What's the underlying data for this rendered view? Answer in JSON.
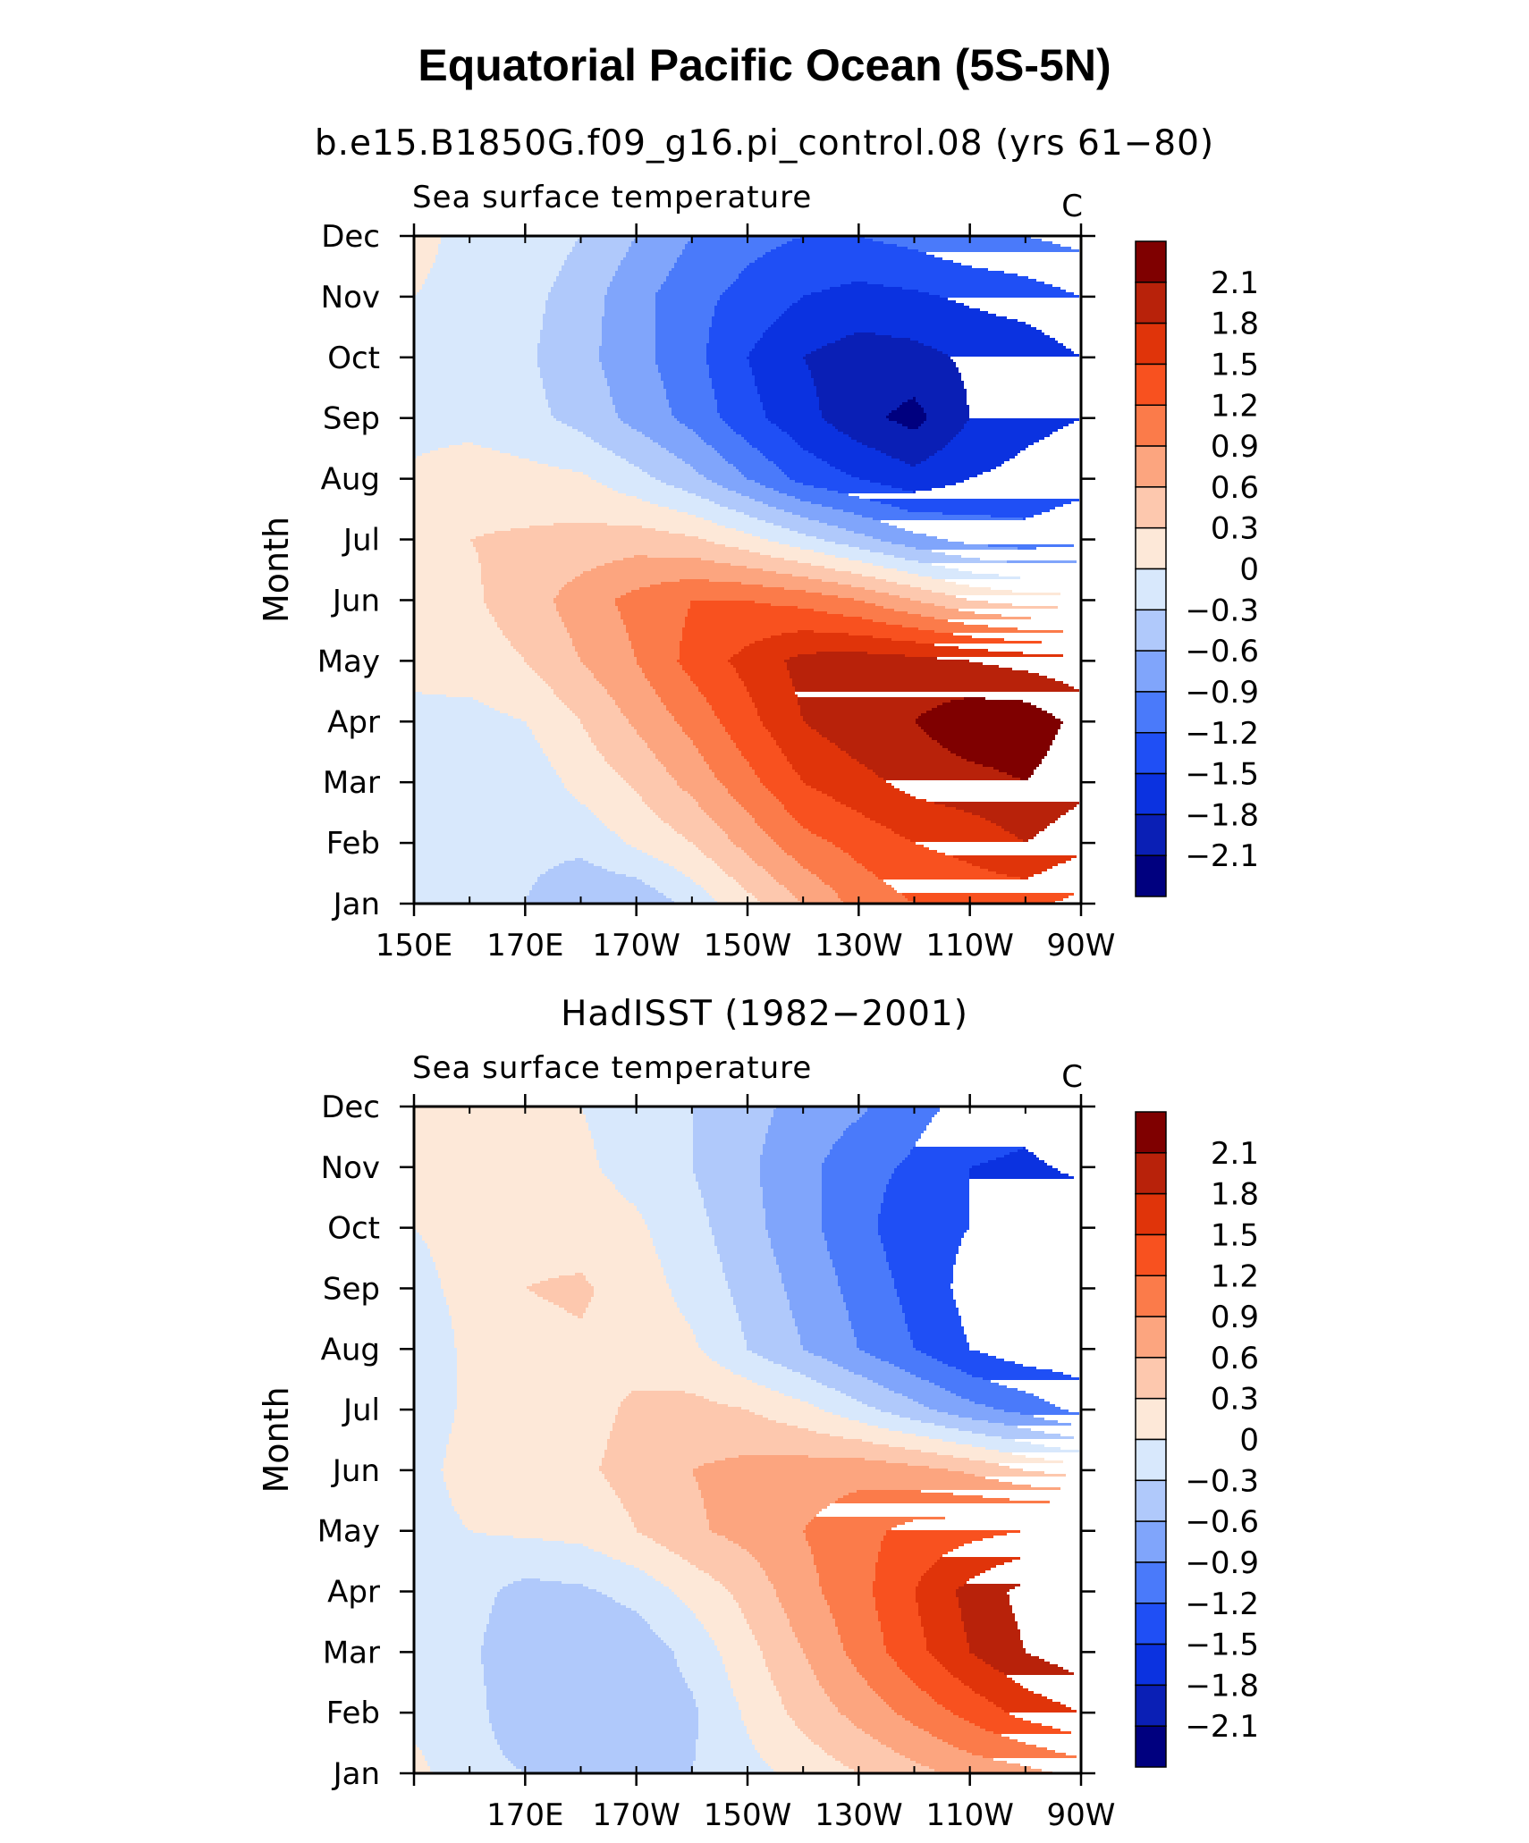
{
  "page": {
    "title": "Equatorial Pacific Ocean (5S-5N)"
  },
  "colorbar": {
    "levels": [
      -2.1,
      -1.8,
      -1.5,
      -1.2,
      -0.9,
      -0.6,
      -0.3,
      0,
      0.3,
      0.6,
      0.9,
      1.2,
      1.5,
      1.8,
      2.1
    ],
    "labels": [
      "2.1",
      "1.8",
      "1.5",
      "1.2",
      "0.9",
      "0.6",
      "0.3",
      "0",
      "−0.3",
      "−0.6",
      "−0.9",
      "−1.2",
      "−1.5",
      "−1.8",
      "−2.1"
    ],
    "colors": [
      "#00007f",
      "#0a1fb5",
      "#0b32e0",
      "#1f4ff5",
      "#4a7afa",
      "#80a5fb",
      "#b0c9fb",
      "#d8e8fc",
      "#fde8d8",
      "#fdc8ae",
      "#fca57f",
      "#fb7b4a",
      "#f8511f",
      "#e0340a",
      "#b8220a",
      "#7f0000"
    ]
  },
  "chart_data": [
    {
      "type": "heatmap",
      "title": "b.e15.B1850G.f09_g16.pi_control.08 (yrs 61−80)",
      "left_label": "Sea surface temperature",
      "right_label": "C",
      "ylabel": "Month",
      "xlabel": "",
      "x_tick_labels": [
        "150E",
        "170E",
        "170W",
        "150W",
        "130W",
        "110W",
        "90W"
      ],
      "y_tick_labels": [
        "Jan",
        "Feb",
        "Mar",
        "Apr",
        "May",
        "Jun",
        "Jul",
        "Aug",
        "Sep",
        "Oct",
        "Nov",
        "Dec"
      ],
      "x_range": [
        "150E",
        "90W"
      ],
      "y_range": [
        "Jan",
        "Dec"
      ],
      "x_lon": [
        150,
        160,
        170,
        180,
        190,
        200,
        210,
        220,
        230,
        240,
        250,
        260,
        270
      ],
      "y_months": [
        "Jan",
        "Feb",
        "Mar",
        "Apr",
        "May",
        "Jun",
        "Jul",
        "Aug",
        "Sep",
        "Oct",
        "Nov",
        "Dec"
      ],
      "z": [
        [
          -0.2,
          -0.25,
          -0.3,
          -0.6,
          -0.55,
          -0.2,
          0.2,
          0.6,
          1.0,
          1.2,
          1.3,
          1.3,
          1.1
        ],
        [
          -0.2,
          -0.25,
          -0.2,
          -0.2,
          0.05,
          0.3,
          0.7,
          1.1,
          1.3,
          1.5,
          1.6,
          1.8,
          1.6
        ],
        [
          -0.1,
          -0.2,
          -0.2,
          0.1,
          0.35,
          0.7,
          1.1,
          1.5,
          1.7,
          1.9,
          2.0,
          2.1,
          1.9
        ],
        [
          -0.05,
          -0.1,
          0.0,
          0.3,
          0.65,
          1.0,
          1.4,
          1.8,
          2.0,
          2.1,
          2.3,
          2.3,
          2.0
        ],
        [
          0.05,
          0.15,
          0.3,
          0.6,
          0.9,
          1.3,
          1.6,
          1.9,
          1.95,
          1.9,
          1.8,
          1.7,
          1.6
        ],
        [
          0.1,
          0.25,
          0.45,
          0.75,
          1.0,
          1.2,
          1.2,
          1.1,
          0.9,
          0.6,
          0.3,
          0.15,
          0.1
        ],
        [
          0.1,
          0.3,
          0.35,
          0.4,
          0.45,
          0.35,
          0.1,
          -0.2,
          -0.5,
          -0.8,
          -1.0,
          -1.1,
          -1.0
        ],
        [
          0.05,
          0.15,
          0.1,
          0.05,
          -0.2,
          -0.5,
          -0.9,
          -1.3,
          -1.5,
          -1.7,
          -1.5,
          -1.4,
          -1.3
        ],
        [
          -0.1,
          -0.1,
          -0.2,
          -0.4,
          -0.7,
          -1.0,
          -1.4,
          -1.7,
          -2.0,
          -2.2,
          -1.8,
          -1.6,
          -1.5
        ],
        [
          -0.15,
          -0.15,
          -0.25,
          -0.5,
          -0.8,
          -1.1,
          -1.5,
          -1.8,
          -1.95,
          -1.9,
          -1.75,
          -1.7,
          -1.5
        ],
        [
          0.0,
          -0.1,
          -0.2,
          -0.45,
          -0.8,
          -1.1,
          -1.3,
          -1.5,
          -1.6,
          -1.55,
          -1.45,
          -1.35,
          -1.2
        ],
        [
          0.1,
          -0.1,
          -0.1,
          -0.3,
          -0.6,
          -0.9,
          -1.1,
          -1.2,
          -1.2,
          -1.1,
          -0.95,
          -0.9,
          -0.8
        ]
      ]
    },
    {
      "type": "heatmap",
      "title": "HadISST (1982−2001)",
      "left_label": "Sea surface temperature",
      "right_label": "C",
      "ylabel": "Month",
      "xlabel": "",
      "x_tick_labels": [
        "170E",
        "170W",
        "150W",
        "130W",
        "110W",
        "90W"
      ],
      "y_tick_labels": [
        "Jan",
        "Feb",
        "Mar",
        "Apr",
        "May",
        "Jun",
        "Jul",
        "Aug",
        "Sep",
        "Oct",
        "Nov",
        "Dec"
      ],
      "x_range": [
        "150E",
        "90W"
      ],
      "y_range": [
        "Jan",
        "Dec"
      ],
      "x_lon": [
        150,
        160,
        170,
        180,
        190,
        200,
        210,
        220,
        230,
        240,
        250,
        260,
        270
      ],
      "y_months": [
        "Jan",
        "Feb",
        "Mar",
        "Apr",
        "May",
        "Jun",
        "Jul",
        "Aug",
        "Sep",
        "Oct",
        "Nov",
        "Dec"
      ],
      "z": [
        [
          0.1,
          -0.2,
          -0.3,
          -0.4,
          -0.4,
          -0.3,
          -0.1,
          0.1,
          0.3,
          0.5,
          0.7,
          0.8,
          1.0
        ],
        [
          -0.1,
          -0.2,
          -0.5,
          -0.55,
          -0.5,
          -0.35,
          0.05,
          0.4,
          0.7,
          1.0,
          1.3,
          1.6,
          1.8
        ],
        [
          -0.2,
          -0.25,
          -0.5,
          -0.6,
          -0.5,
          -0.2,
          0.2,
          0.6,
          1.0,
          1.4,
          1.8,
          2.1,
          2.3
        ],
        [
          -0.2,
          -0.2,
          -0.4,
          -0.35,
          -0.2,
          0.1,
          0.4,
          0.8,
          1.1,
          1.5,
          1.9,
          2.2,
          2.2
        ],
        [
          -0.1,
          0.0,
          0.05,
          0.1,
          0.3,
          0.55,
          0.7,
          0.9,
          1.1,
          1.3,
          1.4,
          1.5,
          1.5
        ],
        [
          -0.1,
          0.1,
          0.2,
          0.25,
          0.4,
          0.6,
          0.7,
          0.75,
          0.8,
          0.7,
          0.55,
          0.3,
          0.15
        ],
        [
          -0.15,
          0.05,
          0.2,
          0.2,
          0.35,
          0.4,
          0.3,
          0.1,
          -0.2,
          -0.5,
          -0.8,
          -1.0,
          -1.3
        ],
        [
          -0.3,
          0.1,
          0.2,
          0.25,
          0.2,
          0.05,
          -0.3,
          -0.6,
          -0.9,
          -1.2,
          -1.5,
          -1.7,
          -1.7
        ],
        [
          -0.1,
          0.1,
          0.3,
          0.35,
          0.15,
          -0.1,
          -0.4,
          -0.7,
          -1.0,
          -1.3,
          -1.6,
          -1.8,
          -1.75
        ],
        [
          0.0,
          0.1,
          0.2,
          0.15,
          0.05,
          -0.2,
          -0.5,
          -0.8,
          -1.1,
          -1.4,
          -1.5,
          -1.6,
          -1.7
        ],
        [
          0.05,
          0.1,
          0.15,
          0.05,
          -0.1,
          -0.3,
          -0.55,
          -0.8,
          -1.1,
          -1.25,
          -1.5,
          -1.55,
          -1.45
        ],
        [
          0.05,
          0.1,
          0.1,
          0.0,
          -0.1,
          -0.3,
          -0.5,
          -0.7,
          -0.85,
          -1.1,
          -1.3,
          -1.4,
          -1.2
        ]
      ]
    }
  ]
}
